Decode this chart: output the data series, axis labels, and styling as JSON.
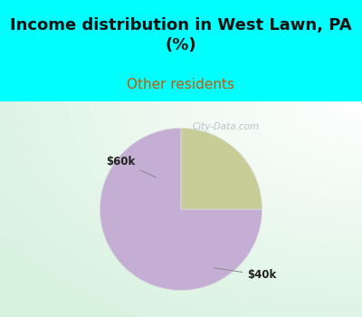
{
  "title": "Income distribution in West Lawn, PA\n(%)",
  "subtitle": "Other residents",
  "title_color": "#111111",
  "subtitle_color": "#cc5500",
  "title_fontsize": 13,
  "subtitle_fontsize": 11,
  "slices": [
    75,
    25
  ],
  "slice_colors": [
    "#c4aed4",
    "#c8cc96"
  ],
  "labels": [
    "$40k",
    "$60k"
  ],
  "bg_top_color": "#00ffff",
  "startangle": 90,
  "watermark": "City-Data.com",
  "chart_bg": "#dff2e2"
}
